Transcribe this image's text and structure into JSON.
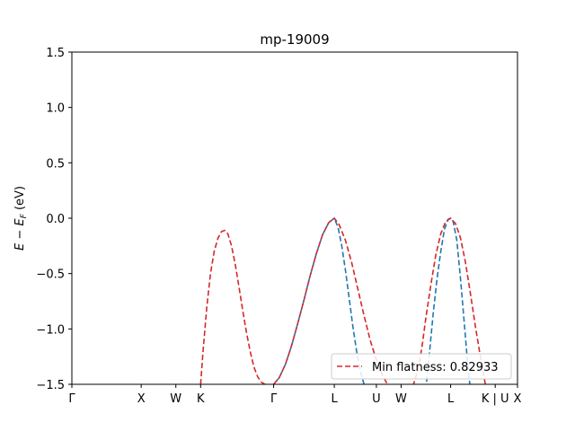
{
  "chart_data": {
    "type": "line",
    "title": "mp-19009",
    "ylabel": "E − E_F (eV)",
    "xlabel": "",
    "ylim": [
      -1.5,
      1.5
    ],
    "xlim": [
      0,
      7.2
    ],
    "y_ticks": [
      -1.5,
      -1.0,
      -0.5,
      0.0,
      0.5,
      1.0,
      1.5
    ],
    "y_tick_labels": [
      "−1.5",
      "−1.0",
      "−0.5",
      "0.0",
      "0.5",
      "1.0",
      "1.5"
    ],
    "x_ticks": [
      {
        "label": "Γ",
        "x": 0.0
      },
      {
        "label": "X",
        "x": 1.12
      },
      {
        "label": "W",
        "x": 1.68
      },
      {
        "label": "K",
        "x": 2.08
      },
      {
        "label": "Γ",
        "x": 3.26
      },
      {
        "label": "L",
        "x": 4.24
      },
      {
        "label": "U",
        "x": 4.92
      },
      {
        "label": "W",
        "x": 5.32
      },
      {
        "label": "L",
        "x": 6.12
      },
      {
        "label": "K | U",
        "x": 6.84
      },
      {
        "label": "X",
        "x": 7.2
      }
    ],
    "grid": false,
    "legend": {
      "placement": "lower-right",
      "entries": [
        {
          "label": "Min flatness: 0.82933",
          "color": "#d62728",
          "style": "dashed"
        }
      ]
    },
    "series": [
      {
        "color": "#1f77b4",
        "style": "dashed",
        "x": [
          3.2,
          3.26,
          3.35,
          3.45,
          3.55,
          3.65,
          3.75,
          3.85,
          3.95,
          4.05,
          4.15,
          4.24,
          4.3,
          4.36,
          4.42,
          4.48,
          4.54,
          4.6,
          4.66,
          4.72,
          4.76
        ],
        "y": [
          -1.52,
          -1.5,
          -1.44,
          -1.32,
          -1.15,
          -0.95,
          -0.74,
          -0.52,
          -0.32,
          -0.15,
          -0.04,
          0.0,
          -0.08,
          -0.25,
          -0.47,
          -0.72,
          -0.98,
          -1.2,
          -1.38,
          -1.5,
          -1.55
        ]
      },
      {
        "color": "#1f77b4",
        "style": "dashed",
        "x": [
          5.72,
          5.78,
          5.84,
          5.9,
          5.96,
          6.02,
          6.08,
          6.12,
          6.16,
          6.22,
          6.28,
          6.34,
          6.4,
          6.44
        ],
        "y": [
          -1.55,
          -1.2,
          -0.85,
          -0.55,
          -0.3,
          -0.1,
          -0.01,
          0.0,
          -0.03,
          -0.2,
          -0.55,
          -0.95,
          -1.35,
          -1.55
        ]
      },
      {
        "name": "Min flatness: 0.82933",
        "color": "#d62728",
        "style": "dashed",
        "x": [
          2.08,
          2.12,
          2.18,
          2.24,
          2.3,
          2.36,
          2.42,
          2.47,
          2.52,
          2.58,
          2.64,
          2.7,
          2.76,
          2.82,
          2.88,
          2.94,
          3.0,
          3.06,
          3.12,
          3.18,
          3.24,
          3.26
        ],
        "y": [
          -1.5,
          -1.2,
          -0.8,
          -0.5,
          -0.3,
          -0.18,
          -0.12,
          -0.11,
          -0.14,
          -0.25,
          -0.42,
          -0.62,
          -0.83,
          -1.03,
          -1.2,
          -1.34,
          -1.43,
          -1.48,
          -1.5,
          -1.51,
          -1.51,
          -1.5
        ],
        "x2": [
          3.26,
          3.35,
          3.45,
          3.55,
          3.65,
          3.75,
          3.85,
          3.95,
          4.05,
          4.15,
          4.24,
          4.32,
          4.42,
          4.52,
          4.62,
          4.72,
          4.82,
          4.92,
          5.02,
          5.12,
          5.22,
          5.32,
          5.42,
          5.52,
          5.6,
          5.66,
          5.72,
          5.8,
          5.88,
          5.96,
          6.04,
          6.12,
          6.2,
          6.28,
          6.36,
          6.44,
          6.52,
          6.6,
          6.68
        ],
        "y2": [
          -1.5,
          -1.44,
          -1.32,
          -1.15,
          -0.95,
          -0.74,
          -0.52,
          -0.32,
          -0.15,
          -0.04,
          0.0,
          -0.06,
          -0.2,
          -0.4,
          -0.64,
          -0.88,
          -1.1,
          -1.28,
          -1.42,
          -1.52,
          -1.58,
          -1.6,
          -1.58,
          -1.5,
          -1.35,
          -1.15,
          -0.9,
          -0.6,
          -0.33,
          -0.14,
          -0.03,
          0.0,
          -0.05,
          -0.18,
          -0.4,
          -0.68,
          -0.98,
          -1.25,
          -1.5
        ]
      }
    ]
  }
}
